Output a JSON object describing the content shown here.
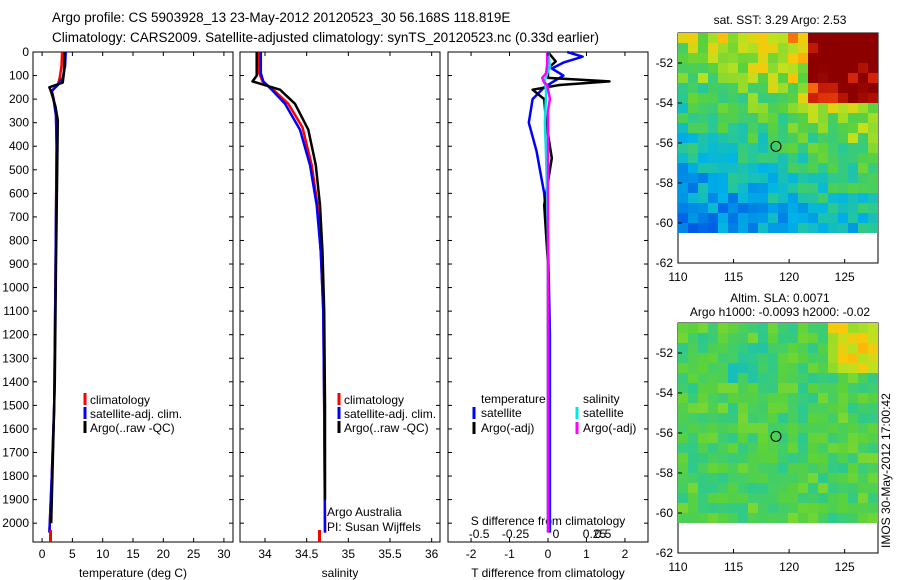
{
  "header": {
    "line1": "Argo profile: CS 5903928_13 23-May-2012 20120523_30 56.168S 118.819E",
    "line2": "Climatology: CARS2009. Satellite-adjusted climatology: synTS_20120523.nc (0.33d earlier)"
  },
  "colors": {
    "climatology": "#ff0000",
    "satellite": "#0000ff",
    "argo": "#000000",
    "satellite_s": "#00e5e5",
    "argo_s": "#ff00ff"
  },
  "chart_data": [
    {
      "type": "line",
      "name": "temperature",
      "xlabel": "temperature (deg C)",
      "xlim": [
        -1.5,
        31.5
      ],
      "ylim": [
        2080,
        0
      ],
      "xticks": [
        0,
        5,
        10,
        15,
        20,
        25,
        30
      ],
      "yticks": [
        0,
        100,
        200,
        300,
        400,
        500,
        600,
        700,
        800,
        900,
        1000,
        1100,
        1200,
        1300,
        1400,
        1500,
        1600,
        1700,
        1800,
        1900,
        2000
      ],
      "legend": [
        "climatology",
        "satellite-adj. clim.",
        "Argo(..raw -QC)"
      ],
      "series": [
        {
          "name": "climatology",
          "color": "#ff0000",
          "points": [
            [
              3.3,
              0
            ],
            [
              3.2,
              60
            ],
            [
              2.9,
              110
            ],
            [
              2.6,
              140
            ],
            [
              1.6,
              165
            ],
            [
              1.9,
              200
            ],
            [
              2.3,
              270
            ],
            [
              2.4,
              400
            ],
            [
              2.3,
              700
            ],
            [
              2.2,
              1000
            ],
            [
              2.0,
              1500
            ],
            [
              1.6,
              1800
            ],
            [
              1.2,
              2040
            ]
          ]
        },
        {
          "name": "satellite-adj. clim.",
          "color": "#0000ff",
          "points": [
            [
              3.9,
              0
            ],
            [
              3.8,
              60
            ],
            [
              3.4,
              110
            ],
            [
              2.6,
              140
            ],
            [
              1.6,
              165
            ],
            [
              1.9,
              200
            ],
            [
              2.3,
              270
            ],
            [
              2.4,
              400
            ],
            [
              2.3,
              700
            ],
            [
              2.2,
              1000
            ],
            [
              2.0,
              1500
            ],
            [
              1.6,
              1800
            ],
            [
              1.2,
              2040
            ]
          ]
        },
        {
          "name": "Argo(..raw -QC)",
          "color": "#000000",
          "points": [
            [
              3.7,
              0
            ],
            [
              3.6,
              90
            ],
            [
              3.4,
              130
            ],
            [
              1.2,
              150
            ],
            [
              1.5,
              170
            ],
            [
              2.2,
              230
            ],
            [
              2.6,
              290
            ],
            [
              2.5,
              500
            ],
            [
              2.3,
              900
            ],
            [
              2.1,
              1400
            ],
            [
              1.8,
              1700
            ],
            [
              1.5,
              2000
            ]
          ]
        }
      ]
    },
    {
      "type": "line",
      "name": "salinity",
      "xlabel": "salinity",
      "xlim": [
        33.7,
        36.1
      ],
      "ylim": [
        2080,
        0
      ],
      "xticks": [
        34,
        34.5,
        35,
        35.5,
        36
      ],
      "legend": [
        "climatology",
        "satellite-adj. clim.",
        "Argo(..raw -QC)"
      ],
      "annotation": [
        "Argo Australia",
        "PI: Susan Wijffels"
      ],
      "series": [
        {
          "name": "climatology",
          "color": "#ff0000",
          "points": [
            [
              33.93,
              0
            ],
            [
              33.93,
              90
            ],
            [
              33.97,
              125
            ],
            [
              34.1,
              160
            ],
            [
              34.28,
              220
            ],
            [
              34.45,
              320
            ],
            [
              34.56,
              480
            ],
            [
              34.63,
              650
            ],
            [
              34.67,
              850
            ],
            [
              34.7,
              1100
            ],
            [
              34.71,
              1500
            ],
            [
              34.72,
              2040
            ]
          ]
        },
        {
          "name": "satellite-adj. clim.",
          "color": "#0000ff",
          "points": [
            [
              33.95,
              0
            ],
            [
              33.95,
              90
            ],
            [
              33.98,
              125
            ],
            [
              34.08,
              160
            ],
            [
              34.24,
              220
            ],
            [
              34.42,
              330
            ],
            [
              34.54,
              480
            ],
            [
              34.62,
              650
            ],
            [
              34.67,
              850
            ],
            [
              34.7,
              1100
            ],
            [
              34.71,
              1500
            ],
            [
              34.72,
              2040
            ]
          ]
        },
        {
          "name": "Argo(..raw -QC)",
          "color": "#000000",
          "points": [
            [
              33.9,
              0
            ],
            [
              33.9,
              100
            ],
            [
              33.85,
              125
            ],
            [
              34.18,
              160
            ],
            [
              34.36,
              220
            ],
            [
              34.52,
              330
            ],
            [
              34.61,
              480
            ],
            [
              34.66,
              650
            ],
            [
              34.69,
              850
            ],
            [
              34.71,
              1100
            ],
            [
              34.72,
              1500
            ],
            [
              34.72,
              1900
            ]
          ]
        }
      ]
    },
    {
      "type": "line",
      "name": "difference from climatology",
      "xlabel": "T difference from climatology",
      "xlabel_top": "S difference from climatology",
      "xlim": [
        -2.6,
        2.6
      ],
      "ylim": [
        2080,
        0
      ],
      "xticks": [
        -2,
        -1,
        0,
        1,
        2
      ],
      "xticks_s": [
        -0.5,
        -0.25,
        0,
        0.25,
        0.5
      ],
      "legend_t_title": "temperature",
      "legend_s_title": "salinity",
      "legend": [
        "satellite",
        "Argo(-adj)",
        "satellite",
        "Argo(-adj)"
      ],
      "series": [
        {
          "name": "T satellite",
          "color": "#0000ff",
          "points": [
            [
              0.5,
              0
            ],
            [
              0.9,
              20
            ],
            [
              0.4,
              45
            ],
            [
              0.1,
              70
            ],
            [
              0.4,
              100
            ],
            [
              0.1,
              130
            ],
            [
              -0.1,
              150
            ],
            [
              -0.4,
              200
            ],
            [
              -0.5,
              300
            ],
            [
              -0.3,
              420
            ],
            [
              -0.1,
              600
            ],
            [
              0,
              800
            ],
            [
              0.05,
              1200
            ],
            [
              0.05,
              2040
            ]
          ]
        },
        {
          "name": "T Argo(-adj)",
          "color": "#000000",
          "points": [
            [
              0,
              0
            ],
            [
              0.2,
              40
            ],
            [
              0,
              70
            ],
            [
              0,
              110
            ],
            [
              1.6,
              125
            ],
            [
              0.3,
              140
            ],
            [
              -0.4,
              160
            ],
            [
              -0.1,
              200
            ],
            [
              -0.05,
              300
            ],
            [
              0.1,
              450
            ],
            [
              -0.1,
              650
            ],
            [
              0,
              900
            ],
            [
              0,
              1400
            ],
            [
              0,
              2000
            ]
          ]
        },
        {
          "name": "S satellite",
          "color": "#00e5e5",
          "points": [
            [
              0,
              0
            ],
            [
              0.05,
              60
            ],
            [
              -0.08,
              120
            ],
            [
              -0.05,
              170
            ],
            [
              -0.08,
              300
            ],
            [
              -0.04,
              500
            ],
            [
              0,
              800
            ],
            [
              0,
              1200
            ],
            [
              0,
              2040
            ]
          ]
        },
        {
          "name": "S Argo(-adj)",
          "color": "#ff00ff",
          "points": [
            [
              -0.02,
              0
            ],
            [
              -0.02,
              50
            ],
            [
              -0.05,
              90
            ],
            [
              -0.15,
              110
            ],
            [
              -0.1,
              130
            ],
            [
              -0.02,
              140
            ],
            [
              0.05,
              200
            ],
            [
              0,
              250
            ],
            [
              0,
              400
            ],
            [
              0,
              2040
            ]
          ]
        }
      ]
    },
    {
      "type": "heatmap",
      "name": "sat SST map",
      "title": "sat. SST: 3.29 Argo: 2.53",
      "xlim": [
        110,
        128
      ],
      "ylim": [
        -62,
        -50.5
      ],
      "xticks": [
        110,
        115,
        120,
        125
      ],
      "yticks": [
        -52,
        -54,
        -56,
        -58,
        -60,
        -62
      ],
      "marker": [
        118.819,
        -56.168
      ]
    },
    {
      "type": "heatmap",
      "name": "altimetry SLA map",
      "title": "Altim. SLA: 0.0071",
      "subtitle": "Argo h1000: -0.0093 h2000: -0.02",
      "xlim": [
        110,
        128
      ],
      "ylim": [
        -62,
        -50.5
      ],
      "xticks": [
        110,
        115,
        120,
        125
      ],
      "yticks": [
        -52,
        -54,
        -56,
        -58,
        -60,
        -62
      ],
      "marker": [
        118.819,
        -56.168
      ]
    }
  ],
  "footer": {
    "stamp": "IMOS 30-May-2012 17:00:42"
  }
}
